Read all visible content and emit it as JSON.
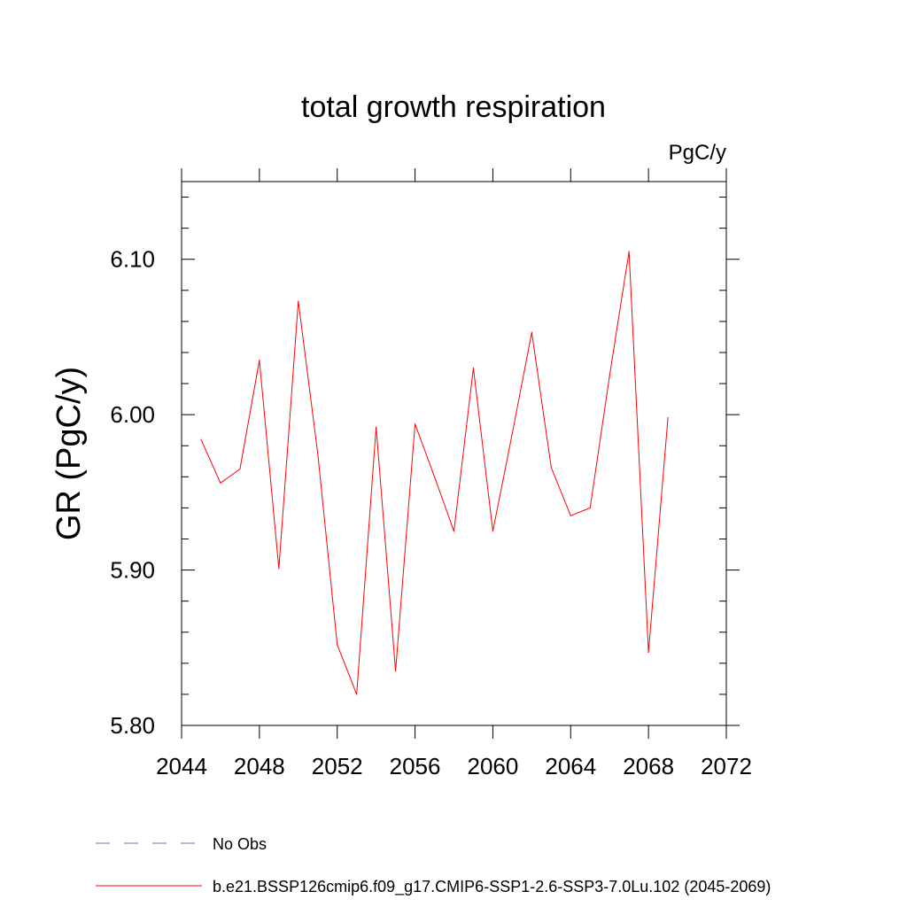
{
  "chart_data": {
    "type": "line",
    "title": "total growth respiration",
    "units": "PgC/y",
    "ylabel": "GR  (PgC/y)",
    "xlabel": "",
    "xlim": [
      2044,
      2072
    ],
    "ylim": [
      5.8,
      6.15
    ],
    "x_ticks": [
      2044,
      2048,
      2052,
      2056,
      2060,
      2064,
      2068,
      2072
    ],
    "x_tick_labels": [
      "2044",
      "2048",
      "2052",
      "2056",
      "2060",
      "2064",
      "2068",
      "2072"
    ],
    "y_ticks": [
      5.8,
      5.9,
      6.0,
      6.1
    ],
    "y_tick_labels": [
      "5.80",
      "5.90",
      "6.00",
      "6.10"
    ],
    "grid": false,
    "series": [
      {
        "name": "b.e21.BSSP126cmip6.f09_g17.CMIP6-SSP1-2.6-SSP3-7.0Lu.102 (2045-2069)",
        "color": "#ff0000",
        "style": "solid",
        "x": [
          2045,
          2046,
          2047,
          2048,
          2049,
          2050,
          2051,
          2052,
          2053,
          2054,
          2055,
          2056,
          2057,
          2058,
          2059,
          2060,
          2061,
          2062,
          2063,
          2064,
          2065,
          2066,
          2067,
          2068,
          2069
        ],
        "y": [
          5.984,
          5.956,
          5.965,
          6.035,
          5.901,
          6.073,
          5.975,
          5.852,
          5.82,
          5.992,
          5.835,
          5.994,
          5.96,
          5.925,
          6.03,
          5.925,
          5.988,
          6.053,
          5.966,
          5.935,
          5.94,
          6.025,
          6.105,
          5.847,
          5.998
        ]
      }
    ],
    "legend": {
      "placement": "bottom",
      "entries": [
        {
          "label": "No Obs",
          "color": "#7b68c8",
          "style": "dashed"
        },
        {
          "label": "b.e21.BSSP126cmip6.f09_g17.CMIP6-SSP1-2.6-SSP3-7.0Lu.102 (2045-2069)",
          "color": "#ff0000",
          "style": "solid"
        }
      ]
    }
  }
}
